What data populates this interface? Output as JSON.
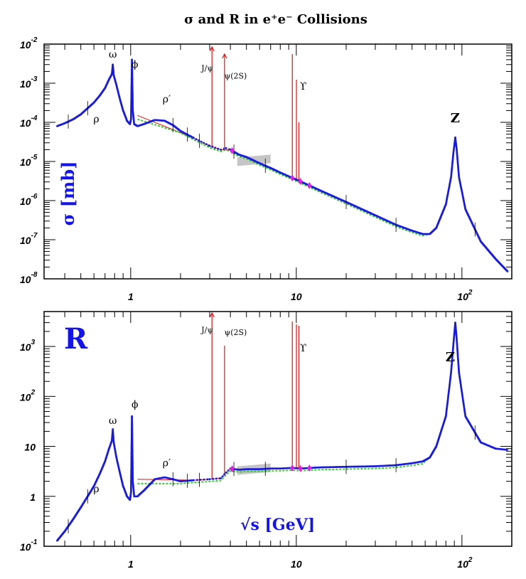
{
  "title": "σ and R in e⁺e⁻ Collisions",
  "colors": {
    "data_points": "#1a1adc",
    "red_curve": "#e01010",
    "green_curve": "#22cc22",
    "magenta": "#e020e0",
    "grey_band": "#bbbbbb",
    "label_blue": "#1414e6"
  },
  "chart_data": [
    {
      "type": "scatter",
      "panel": "sigma",
      "ylabel": "σ [mb]",
      "xscale": "log",
      "yscale": "log",
      "xlim": [
        0.3,
        200
      ],
      "ylim": [
        1e-08,
        0.01
      ],
      "grid": false,
      "x_ticks": [
        "1",
        "10",
        "10²"
      ],
      "y_ticks": [
        "10⁻⁸",
        "10⁻⁷",
        "10⁻⁶",
        "10⁻⁵",
        "10⁻⁴",
        "10⁻³",
        "10⁻²"
      ],
      "annotations": [
        {
          "text": "ω",
          "x": 0.78,
          "y": 0.0045
        },
        {
          "text": "ϕ",
          "x": 1.06,
          "y": 0.0025
        },
        {
          "text": "ρ",
          "x": 0.62,
          "y": 0.0001
        },
        {
          "text": "ρ′",
          "x": 1.65,
          "y": 0.00032
        },
        {
          "text": "J/ψ",
          "x": 2.9,
          "y": 0.0021
        },
        {
          "text": "ψ(2S)",
          "x": 4.3,
          "y": 0.0013
        },
        {
          "text": "ϒ",
          "x": 11.0,
          "y": 0.00068
        },
        {
          "text": "Z",
          "x": 91,
          "y": 0.0001
        }
      ],
      "series": [
        {
          "values": [
            [
              0.36,
              8e-05
            ],
            [
              0.4,
              9.5e-05
            ],
            [
              0.45,
              0.00012
            ],
            [
              0.5,
              0.00016
            ],
            [
              0.55,
              0.00023
            ],
            [
              0.6,
              0.00032
            ],
            [
              0.65,
              0.00048
            ],
            [
              0.7,
              0.00075
            ],
            [
              0.74,
              0.00125
            ],
            [
              0.77,
              0.0017
            ],
            [
              0.78,
              0.003
            ],
            [
              0.79,
              0.0016
            ],
            [
              0.82,
              0.0009
            ],
            [
              0.86,
              0.0004
            ],
            [
              0.9,
              0.0002
            ],
            [
              0.95,
              0.00011
            ],
            [
              0.99,
              9e-05
            ],
            [
              1.005,
              0.00012
            ],
            [
              1.018,
              0.004
            ],
            [
              1.03,
              0.0002
            ],
            [
              1.05,
              9e-05
            ],
            [
              1.1,
              8e-05
            ],
            [
              1.2,
              9e-05
            ],
            [
              1.4,
              0.000115
            ],
            [
              1.6,
              0.00011
            ],
            [
              1.8,
              8.5e-05
            ],
            [
              2.0,
              6e-05
            ],
            [
              2.4,
              4e-05
            ],
            [
              3.0,
              2.5e-05
            ],
            [
              3.5,
              2e-05
            ],
            [
              3.77,
              2.2e-05
            ],
            [
              4.0,
              2e-05
            ],
            [
              4.5,
              1.5e-05
            ],
            [
              5.0,
              1.3e-05
            ],
            [
              6.0,
              9e-06
            ],
            [
              7.0,
              6.8e-06
            ],
            [
              8.0,
              5.2e-06
            ],
            [
              9.46,
              3.8e-06
            ],
            [
              10.58,
              3.1e-06
            ],
            [
              14.0,
              1.8e-06
            ],
            [
              20.0,
              9.2e-07
            ],
            [
              30.0,
              4.2e-07
            ],
            [
              40.0,
              2.4e-07
            ],
            [
              50.0,
              1.7e-07
            ],
            [
              58.0,
              1.4e-07
            ],
            [
              64.0,
              1.4e-07
            ],
            [
              70.0,
              2e-07
            ],
            [
              80.0,
              8e-07
            ],
            [
              86.0,
              4e-06
            ],
            [
              89.0,
              1.8e-05
            ],
            [
              91.19,
              4.1e-05
            ],
            [
              93.0,
              2e-05
            ],
            [
              96.0,
              4e-06
            ],
            [
              105.0,
              6e-07
            ],
            [
              130.0,
              9e-08
            ],
            [
              160.0,
              3.2e-08
            ],
            [
              190.0,
              1.5e-08
            ]
          ]
        }
      ]
    },
    {
      "type": "scatter",
      "panel": "R",
      "ylabel": "R",
      "xlabel": "√s [GeV]",
      "xscale": "log",
      "yscale": "log",
      "xlim": [
        0.3,
        200
      ],
      "ylim": [
        0.1,
        5000
      ],
      "grid": false,
      "x_ticks": [
        "1",
        "10",
        "10²"
      ],
      "y_ticks": [
        "10⁻¹",
        "1",
        "10",
        "10²",
        "10³"
      ],
      "annotations": [
        {
          "text": "ω",
          "x": 0.78,
          "y": 28
        },
        {
          "text": "ϕ",
          "x": 1.06,
          "y": 60
        },
        {
          "text": "ρ",
          "x": 0.62,
          "y": 1.2
        },
        {
          "text": "ρ′",
          "x": 1.65,
          "y": 4.0
        },
        {
          "text": "J/ψ",
          "x": 2.9,
          "y": 1900
        },
        {
          "text": "ψ(2S)",
          "x": 4.3,
          "y": 1700
        },
        {
          "text": "ϒ",
          "x": 11.0,
          "y": 800
        },
        {
          "text": "Z",
          "x": 85,
          "y": 500
        }
      ],
      "series": [
        {
          "values": [
            [
              0.36,
              0.13
            ],
            [
              0.4,
              0.2
            ],
            [
              0.45,
              0.35
            ],
            [
              0.5,
              0.6
            ],
            [
              0.55,
              1.0
            ],
            [
              0.6,
              1.6
            ],
            [
              0.65,
              2.8
            ],
            [
              0.7,
              5.0
            ],
            [
              0.74,
              9.0
            ],
            [
              0.77,
              13.0
            ],
            [
              0.78,
              22.0
            ],
            [
              0.79,
              12.0
            ],
            [
              0.82,
              6.0
            ],
            [
              0.86,
              3.0
            ],
            [
              0.9,
              1.6
            ],
            [
              0.95,
              1.0
            ],
            [
              0.99,
              0.85
            ],
            [
              1.005,
              1.2
            ],
            [
              1.018,
              40.0
            ],
            [
              1.03,
              2.0
            ],
            [
              1.05,
              1.0
            ],
            [
              1.1,
              1.0
            ],
            [
              1.2,
              1.3
            ],
            [
              1.4,
              2.2
            ],
            [
              1.6,
              2.4
            ],
            [
              1.8,
              2.2
            ],
            [
              2.0,
              2.0
            ],
            [
              2.4,
              2.1
            ],
            [
              3.0,
              2.2
            ],
            [
              3.5,
              2.3
            ],
            [
              3.77,
              3.0
            ],
            [
              4.0,
              3.6
            ],
            [
              4.5,
              3.4
            ],
            [
              5.0,
              3.5
            ],
            [
              6.0,
              3.5
            ],
            [
              7.0,
              3.6
            ],
            [
              8.0,
              3.6
            ],
            [
              9.46,
              3.7
            ],
            [
              10.58,
              3.6
            ],
            [
              14.0,
              3.8
            ],
            [
              20.0,
              3.9
            ],
            [
              30.0,
              4.0
            ],
            [
              40.0,
              4.2
            ],
            [
              50.0,
              4.6
            ],
            [
              58.0,
              5.0
            ],
            [
              64.0,
              6.0
            ],
            [
              70.0,
              10.0
            ],
            [
              80.0,
              40.0
            ],
            [
              86.0,
              300.0
            ],
            [
              89.0,
              1200.0
            ],
            [
              91.19,
              3000.0
            ],
            [
              93.0,
              1400.0
            ],
            [
              96.0,
              300.0
            ],
            [
              105.0,
              40.0
            ],
            [
              130.0,
              12.0
            ],
            [
              160.0,
              9.0
            ],
            [
              190.0,
              8.5
            ]
          ]
        }
      ]
    }
  ]
}
